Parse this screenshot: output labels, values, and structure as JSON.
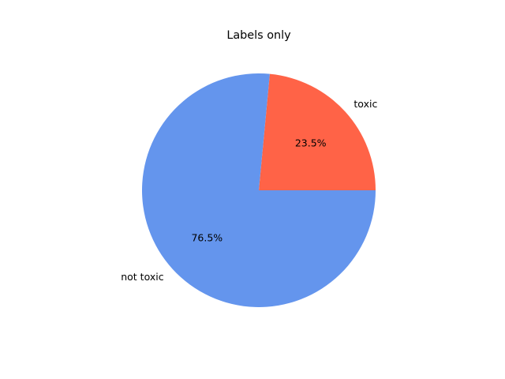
{
  "chart_data": {
    "type": "pie",
    "title": "Labels only",
    "slices": [
      {
        "label": "toxic",
        "value": 23.5,
        "pct_label": "23.5%",
        "color": "#ff6347"
      },
      {
        "label": "not toxic",
        "value": 76.5,
        "pct_label": "76.5%",
        "color": "#6495ed"
      }
    ],
    "start_angle_deg": 0,
    "direction": "counterclockwise",
    "legend": "none"
  }
}
